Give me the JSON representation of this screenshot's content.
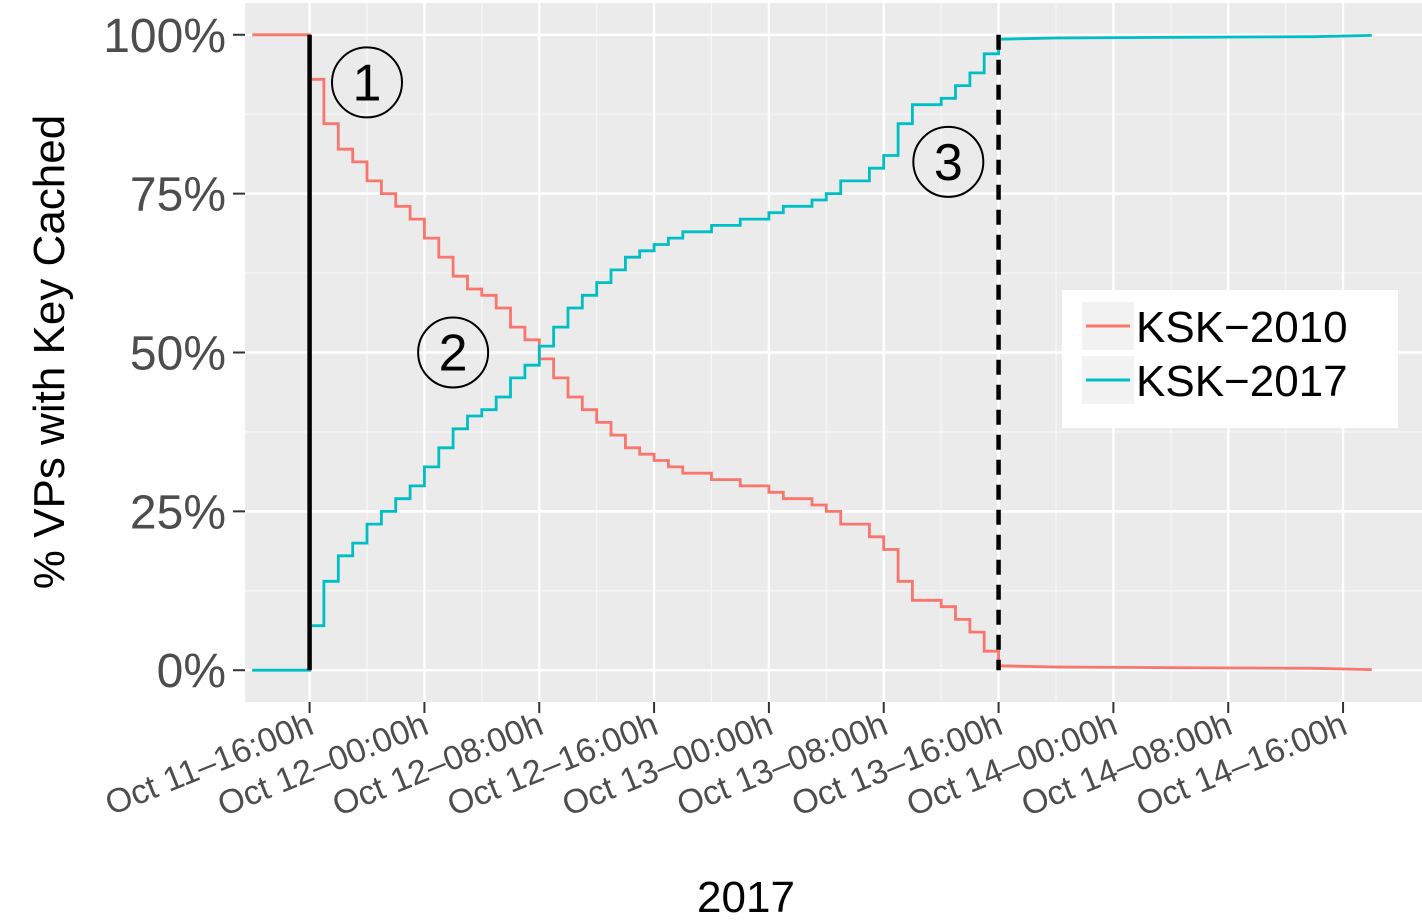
{
  "chart_data": {
    "type": "line",
    "step": true,
    "title": "",
    "xlabel": "2017",
    "ylabel": "% VPs with Key Cached",
    "x_unit": "hours since Oct 11 16:00",
    "x_tick_hours": [
      0,
      8,
      16,
      24,
      32,
      40,
      48,
      56,
      64,
      72
    ],
    "x_ticks": [
      "Oct 11–16:00h",
      "Oct 12–00:00h",
      "Oct 12–08:00h",
      "Oct 12–16:00h",
      "Oct 13–00:00h",
      "Oct 13–08:00h",
      "Oct 13–16:00h",
      "Oct 14–00:00h",
      "Oct 14–08:00h",
      "Oct 14–16:00h"
    ],
    "y_tick_values": [
      0,
      25,
      50,
      75,
      100
    ],
    "y_ticks": [
      "0%",
      "25%",
      "50%",
      "75%",
      "100%"
    ],
    "xlim": [
      -4.5,
      77.5
    ],
    "ylim": [
      -5,
      105
    ],
    "grid": true,
    "legend_position": "right",
    "series": [
      {
        "name": "KSK−2010",
        "color": "#F8766D",
        "points": [
          [
            -4,
            100
          ],
          [
            0,
            100
          ],
          [
            0,
            93
          ],
          [
            1,
            93
          ],
          [
            1,
            86
          ],
          [
            2,
            86
          ],
          [
            2,
            82
          ],
          [
            3,
            82
          ],
          [
            3,
            80
          ],
          [
            4,
            80
          ],
          [
            4,
            77
          ],
          [
            5,
            77
          ],
          [
            5,
            75
          ],
          [
            6,
            75
          ],
          [
            6,
            73
          ],
          [
            7,
            73
          ],
          [
            7,
            71
          ],
          [
            8,
            71
          ],
          [
            8,
            68
          ],
          [
            9,
            68
          ],
          [
            9,
            65
          ],
          [
            10,
            65
          ],
          [
            10,
            62
          ],
          [
            11,
            62
          ],
          [
            11,
            60
          ],
          [
            12,
            60
          ],
          [
            12,
            59
          ],
          [
            13,
            59
          ],
          [
            13,
            57
          ],
          [
            14,
            57
          ],
          [
            14,
            54
          ],
          [
            15,
            54
          ],
          [
            15,
            52
          ],
          [
            16,
            52
          ],
          [
            16,
            49
          ],
          [
            17,
            49
          ],
          [
            17,
            46
          ],
          [
            18,
            46
          ],
          [
            18,
            43
          ],
          [
            19,
            43
          ],
          [
            19,
            41
          ],
          [
            20,
            41
          ],
          [
            20,
            39
          ],
          [
            21,
            39
          ],
          [
            21,
            37
          ],
          [
            22,
            37
          ],
          [
            22,
            35
          ],
          [
            23,
            35
          ],
          [
            23,
            34
          ],
          [
            24,
            34
          ],
          [
            24,
            33
          ],
          [
            25,
            33
          ],
          [
            25,
            32
          ],
          [
            26,
            32
          ],
          [
            26,
            31
          ],
          [
            28,
            31
          ],
          [
            28,
            30
          ],
          [
            30,
            30
          ],
          [
            30,
            29
          ],
          [
            32,
            29
          ],
          [
            32,
            28
          ],
          [
            33,
            28
          ],
          [
            33,
            27
          ],
          [
            35,
            27
          ],
          [
            35,
            26
          ],
          [
            36,
            26
          ],
          [
            36,
            25
          ],
          [
            37,
            25
          ],
          [
            37,
            23
          ],
          [
            39,
            23
          ],
          [
            39,
            21
          ],
          [
            40,
            21
          ],
          [
            40,
            19
          ],
          [
            41,
            19
          ],
          [
            41,
            14
          ],
          [
            42,
            14
          ],
          [
            42,
            11
          ],
          [
            44,
            11
          ],
          [
            44,
            10
          ],
          [
            45,
            10
          ],
          [
            45,
            8
          ],
          [
            46,
            8
          ],
          [
            46,
            6
          ],
          [
            47,
            6
          ],
          [
            47,
            3
          ],
          [
            48,
            3
          ],
          [
            48,
            0.7
          ],
          [
            52,
            0.5
          ],
          [
            60,
            0.4
          ],
          [
            70,
            0.3
          ],
          [
            74,
            0.1
          ]
        ]
      },
      {
        "name": "KSK−2017",
        "color": "#00BFC4",
        "points": [
          [
            -4,
            0
          ],
          [
            0,
            0
          ],
          [
            0,
            7
          ],
          [
            1,
            7
          ],
          [
            1,
            14
          ],
          [
            2,
            14
          ],
          [
            2,
            18
          ],
          [
            3,
            18
          ],
          [
            3,
            20
          ],
          [
            4,
            20
          ],
          [
            4,
            23
          ],
          [
            5,
            23
          ],
          [
            5,
            25
          ],
          [
            6,
            25
          ],
          [
            6,
            27
          ],
          [
            7,
            27
          ],
          [
            7,
            29
          ],
          [
            8,
            29
          ],
          [
            8,
            32
          ],
          [
            9,
            32
          ],
          [
            9,
            35
          ],
          [
            10,
            35
          ],
          [
            10,
            38
          ],
          [
            11,
            38
          ],
          [
            11,
            40
          ],
          [
            12,
            40
          ],
          [
            12,
            41
          ],
          [
            13,
            41
          ],
          [
            13,
            43
          ],
          [
            14,
            43
          ],
          [
            14,
            46
          ],
          [
            15,
            46
          ],
          [
            15,
            48
          ],
          [
            16,
            48
          ],
          [
            16,
            51
          ],
          [
            17,
            51
          ],
          [
            17,
            54
          ],
          [
            18,
            54
          ],
          [
            18,
            57
          ],
          [
            19,
            57
          ],
          [
            19,
            59
          ],
          [
            20,
            59
          ],
          [
            20,
            61
          ],
          [
            21,
            61
          ],
          [
            21,
            63
          ],
          [
            22,
            63
          ],
          [
            22,
            65
          ],
          [
            23,
            65
          ],
          [
            23,
            66
          ],
          [
            24,
            66
          ],
          [
            24,
            67
          ],
          [
            25,
            67
          ],
          [
            25,
            68
          ],
          [
            26,
            68
          ],
          [
            26,
            69
          ],
          [
            28,
            69
          ],
          [
            28,
            70
          ],
          [
            30,
            70
          ],
          [
            30,
            71
          ],
          [
            32,
            71
          ],
          [
            32,
            72
          ],
          [
            33,
            72
          ],
          [
            33,
            73
          ],
          [
            35,
            73
          ],
          [
            35,
            74
          ],
          [
            36,
            74
          ],
          [
            36,
            75
          ],
          [
            37,
            75
          ],
          [
            37,
            77
          ],
          [
            39,
            77
          ],
          [
            39,
            79
          ],
          [
            40,
            79
          ],
          [
            40,
            81
          ],
          [
            41,
            81
          ],
          [
            41,
            86
          ],
          [
            42,
            86
          ],
          [
            42,
            89
          ],
          [
            44,
            89
          ],
          [
            44,
            90
          ],
          [
            45,
            90
          ],
          [
            45,
            92
          ],
          [
            46,
            92
          ],
          [
            46,
            94
          ],
          [
            47,
            94
          ],
          [
            47,
            97
          ],
          [
            48,
            97
          ],
          [
            48,
            99.3
          ],
          [
            52,
            99.5
          ],
          [
            60,
            99.6
          ],
          [
            70,
            99.7
          ],
          [
            74,
            99.9
          ]
        ]
      }
    ],
    "vlines": [
      {
        "x": 0,
        "style": "solid",
        "color": "#000000"
      },
      {
        "x": 48,
        "style": "dashed",
        "color": "#000000"
      }
    ],
    "annotations": [
      {
        "label": "1",
        "x": 4,
        "y": 92.5
      },
      {
        "label": "2",
        "x": 10,
        "y": 50
      },
      {
        "label": "3",
        "x": 44.5,
        "y": 80
      }
    ]
  }
}
